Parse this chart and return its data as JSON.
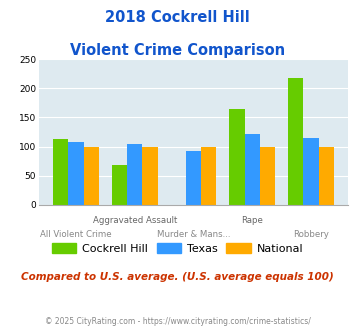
{
  "title_line1": "2018 Cockrell Hill",
  "title_line2": "Violent Crime Comparison",
  "cockrell_hill": [
    113,
    69,
    0,
    165,
    218
  ],
  "texas": [
    108,
    104,
    93,
    121,
    115
  ],
  "national": [
    100,
    100,
    100,
    100,
    100
  ],
  "colors": {
    "cockrell_hill": "#66cc00",
    "texas": "#3399ff",
    "national": "#ffaa00"
  },
  "ylim": [
    0,
    250
  ],
  "yticks": [
    0,
    50,
    100,
    150,
    200,
    250
  ],
  "background_color": "#deeaf0",
  "title_color": "#1155cc",
  "subtitle_text": "Compared to U.S. average. (U.S. average equals 100)",
  "subtitle_color": "#cc3300",
  "footer_text": "© 2025 CityRating.com - https://www.cityrating.com/crime-statistics/",
  "footer_color": "#888888",
  "legend_labels": [
    "Cockrell Hill",
    "Texas",
    "National"
  ],
  "top_labels": [
    "",
    "Aggravated Assault",
    "",
    "Rape",
    ""
  ],
  "bottom_labels": [
    "All Violent Crime",
    "",
    "Murder & Mans...",
    "",
    "Robbery"
  ],
  "bar_width": 0.26
}
